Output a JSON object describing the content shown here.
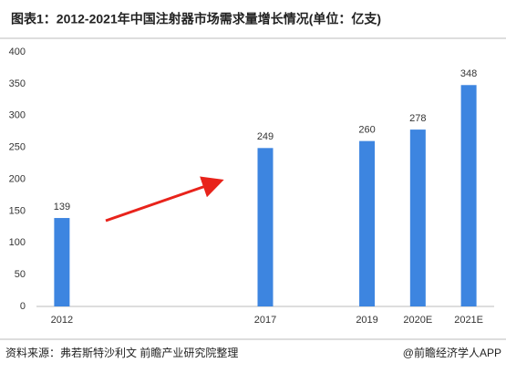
{
  "chart_data": {
    "type": "bar",
    "title": "图表1：2012-2021年中国注射器市场需求量增长情况(单位：亿支)",
    "categories": [
      "2012",
      null,
      null,
      null,
      "2017",
      null,
      "2019",
      "2020E",
      "2021E"
    ],
    "values": [
      139,
      null,
      null,
      null,
      249,
      null,
      260,
      278,
      348
    ],
    "color": "#3d85e0",
    "ylim": [
      0,
      400
    ],
    "yticks": [
      0,
      50,
      100,
      150,
      200,
      250,
      300,
      350,
      400
    ],
    "grid": false,
    "source": "资料来源：弗若斯特沙利文 前瞻产业研究院整理",
    "credit": "@前瞻经济学人APP"
  }
}
